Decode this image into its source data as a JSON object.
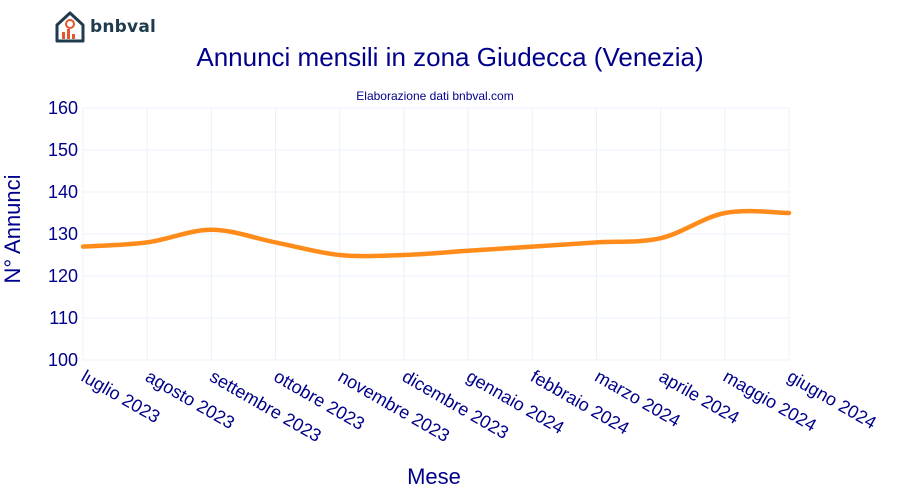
{
  "brand": {
    "name": "bnbval",
    "icon": "house-chart-icon",
    "color": "#1f3b4d",
    "accent": "#e4572e"
  },
  "chart_data": {
    "type": "line",
    "title": "Annunci mensili in zona Giudecca (Venezia)",
    "subtitle": "Elaborazione dati bnbval.com",
    "xlabel": "Mese",
    "ylabel": "N° Annunci",
    "categories": [
      "luglio 2023",
      "agosto 2023",
      "settembre 2023",
      "ottobre 2023",
      "novembre 2023",
      "dicembre 2023",
      "gennaio 2024",
      "febbraio 2024",
      "marzo 2024",
      "aprile 2024",
      "maggio 2024",
      "giugno 2024"
    ],
    "series": [
      {
        "values": [
          127,
          128,
          131,
          128,
          125,
          125,
          126,
          127,
          128,
          129,
          135,
          135
        ],
        "color": "#ff8c1a"
      }
    ],
    "ylim": [
      100,
      160
    ],
    "yticks": [
      100,
      110,
      120,
      130,
      140,
      150,
      160
    ],
    "grid": true,
    "text_color": "#00008b"
  }
}
